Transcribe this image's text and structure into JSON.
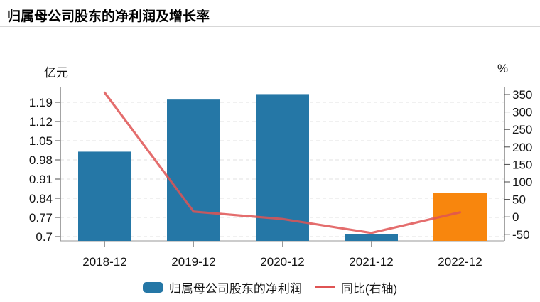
{
  "header": {
    "title": "归属母公司股东的净利润及增长率"
  },
  "chart_data": {
    "type": "bar",
    "subtype": "bar-and-line-dual-axis",
    "categories": [
      "2018-12",
      "2019-12",
      "2020-12",
      "2021-12",
      "2022-12"
    ],
    "series": [
      {
        "name": "归属母公司股东的净利润",
        "type": "bar",
        "axis": "left",
        "unit": "亿元",
        "values": [
          1.01,
          1.2,
          1.22,
          0.71,
          0.86
        ],
        "bar_colors": [
          "#2577A6",
          "#2577A6",
          "#2577A6",
          "#2577A6",
          "#F8860D"
        ]
      },
      {
        "name": "同比(右轴)",
        "type": "line",
        "axis": "right",
        "unit": "%",
        "values": [
          355,
          15,
          -6,
          -46,
          13
        ]
      }
    ],
    "title": "归属母公司股东的净利润及增长率",
    "left_axis": {
      "label": "亿元",
      "ticks": [
        1.19,
        1.12,
        1.05,
        0.98,
        0.91,
        0.84,
        0.77,
        0.7
      ],
      "range": [
        0.7,
        1.19
      ]
    },
    "right_axis": {
      "label": "%",
      "ticks": [
        350,
        300,
        250,
        200,
        150,
        100,
        50,
        0,
        -50
      ],
      "range": [
        -50,
        350
      ]
    },
    "grid": "horizontal dashed lines at left-axis ticks",
    "legend_position": "bottom"
  },
  "legend": {
    "items": [
      {
        "label": "归属母公司股东的净利润",
        "swatch": "bar",
        "color": "#2577A6"
      },
      {
        "label": "同比(右轴)",
        "swatch": "line",
        "color": "#DF5353"
      }
    ]
  },
  "colors": {
    "bar": "#2577A6",
    "bar_highlight": "#F8860D",
    "line": "#DF5353",
    "grid": "#E2E2E2",
    "axis_y": "#4A4A4A",
    "axis_x": "#9A9A9A",
    "divider": "#D7D7D7",
    "text": "#141414"
  }
}
